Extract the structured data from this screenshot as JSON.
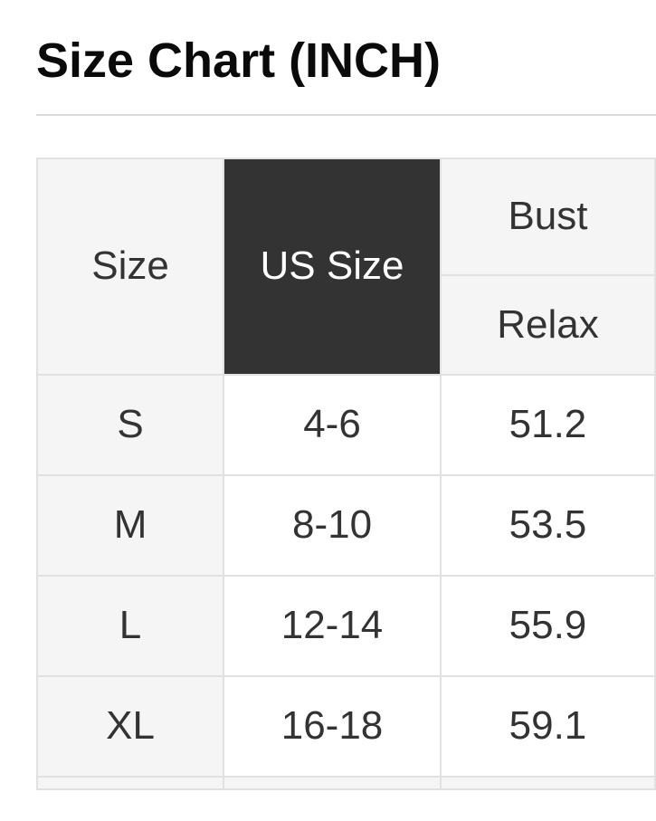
{
  "title": "Size Chart (INCH)",
  "table": {
    "header": {
      "size": "Size",
      "us_size": "US Size",
      "group": "Bust",
      "sub": "Relax"
    },
    "rows": [
      {
        "size": "S",
        "us_size": "4-6",
        "bust_relax": "51.2"
      },
      {
        "size": "M",
        "us_size": "8-10",
        "bust_relax": "53.5"
      },
      {
        "size": "L",
        "us_size": "12-14",
        "bust_relax": "55.9"
      },
      {
        "size": "XL",
        "us_size": "16-18",
        "bust_relax": "59.1"
      }
    ]
  },
  "colors": {
    "header_dark_bg": "#333333",
    "shade_bg": "#f5f5f6",
    "border": "#e1e1e1",
    "text": "#333333",
    "rule": "#d9d9d9"
  }
}
